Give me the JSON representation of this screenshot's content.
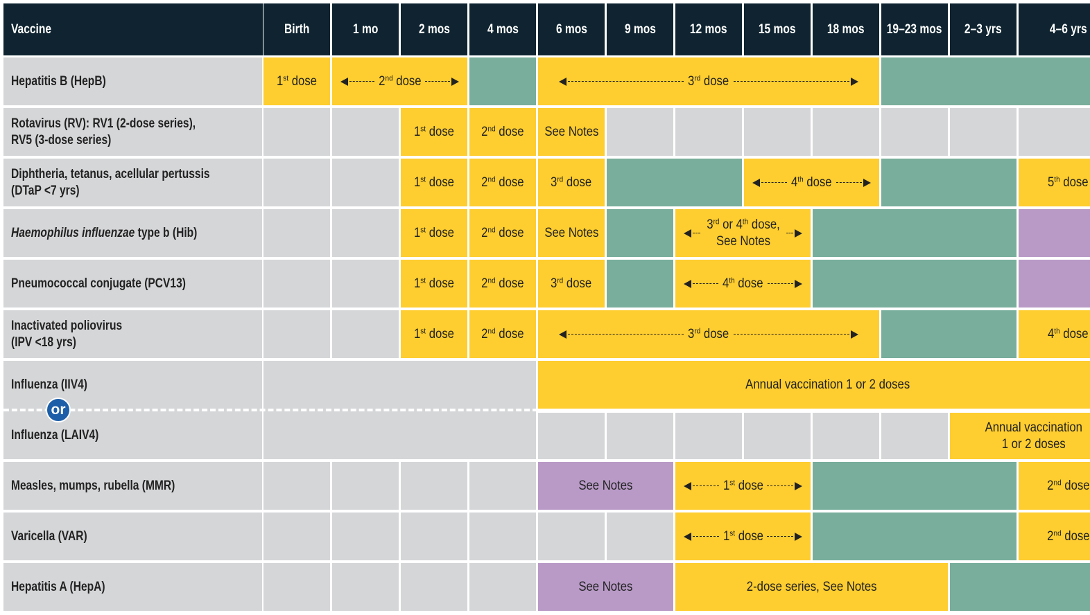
{
  "header": {
    "vaccine": "Vaccine",
    "ages": [
      "Birth",
      "1 mo",
      "2 mos",
      "4 mos",
      "6 mos",
      "9 mos",
      "12 mos",
      "15 mos",
      "18 mos",
      "19–23 mos",
      "2–3 yrs",
      "4–6 yrs"
    ]
  },
  "rows": [
    {
      "label": [
        [
          "Hepatitis B (HepB)"
        ]
      ],
      "cells": [
        {
          "span": 1,
          "color": "#fecd2f",
          "text": [
            [
              "1",
              "st",
              " dose"
            ]
          ]
        },
        {
          "span": 2,
          "color": "#fecd2f",
          "arrows": true,
          "text": [
            [
              "2",
              "nd",
              " dose"
            ]
          ]
        },
        {
          "span": 1,
          "color": "#78ae9b"
        },
        {
          "span": 5,
          "color": "#fecd2f",
          "arrows": true,
          "text": [
            [
              "3",
              "rd",
              " dose"
            ]
          ]
        },
        {
          "span": 3,
          "color": "#78ae9b"
        }
      ]
    },
    {
      "label": [
        [
          "Rotavirus (RV): RV1 (2-dose series),"
        ],
        [
          "RV5 (3-dose series)"
        ]
      ],
      "cells": [
        {
          "span": 1,
          "color": "#d5d6d8"
        },
        {
          "span": 1,
          "color": "#d5d6d8"
        },
        {
          "span": 1,
          "color": "#fecd2f",
          "text": [
            [
              "1",
              "st",
              " dose"
            ]
          ]
        },
        {
          "span": 1,
          "color": "#fecd2f",
          "text": [
            [
              "2",
              "nd",
              " dose"
            ]
          ]
        },
        {
          "span": 1,
          "color": "#fecd2f",
          "text": [
            [
              "See Notes"
            ]
          ]
        },
        {
          "span": 1,
          "color": "#d5d6d8"
        },
        {
          "span": 1,
          "color": "#d5d6d8"
        },
        {
          "span": 1,
          "color": "#d5d6d8"
        },
        {
          "span": 1,
          "color": "#d5d6d8"
        },
        {
          "span": 1,
          "color": "#d5d6d8"
        },
        {
          "span": 1,
          "color": "#d5d6d8"
        },
        {
          "span": 1,
          "color": "#d5d6d8"
        }
      ]
    },
    {
      "label": [
        [
          "Diphtheria, tetanus, acellular pertussis"
        ],
        [
          "(DTaP <7 yrs)"
        ]
      ],
      "cells": [
        {
          "span": 1,
          "color": "#d5d6d8"
        },
        {
          "span": 1,
          "color": "#d5d6d8"
        },
        {
          "span": 1,
          "color": "#fecd2f",
          "text": [
            [
              "1",
              "st",
              " dose"
            ]
          ]
        },
        {
          "span": 1,
          "color": "#fecd2f",
          "text": [
            [
              "2",
              "nd",
              " dose"
            ]
          ]
        },
        {
          "span": 1,
          "color": "#fecd2f",
          "text": [
            [
              "3",
              "rd",
              " dose"
            ]
          ]
        },
        {
          "span": 2,
          "color": "#78ae9b"
        },
        {
          "span": 2,
          "color": "#fecd2f",
          "arrows": true,
          "text": [
            [
              "4",
              "th",
              " dose"
            ]
          ]
        },
        {
          "span": 2,
          "color": "#78ae9b"
        },
        {
          "span": 1,
          "color": "#fecd2f",
          "text": [
            [
              "5",
              "th",
              " dose"
            ]
          ]
        }
      ]
    },
    {
      "label": [
        [
          {
            "italic": "Haemophilus influenzae"
          },
          " type b (Hib)"
        ]
      ],
      "cells": [
        {
          "span": 1,
          "color": "#d5d6d8"
        },
        {
          "span": 1,
          "color": "#d5d6d8"
        },
        {
          "span": 1,
          "color": "#fecd2f",
          "text": [
            [
              "1",
              "st",
              " dose"
            ]
          ]
        },
        {
          "span": 1,
          "color": "#fecd2f",
          "text": [
            [
              "2",
              "nd",
              " dose"
            ]
          ]
        },
        {
          "span": 1,
          "color": "#fecd2f",
          "text": [
            [
              "See Notes"
            ]
          ]
        },
        {
          "span": 1,
          "color": "#78ae9b"
        },
        {
          "span": 2,
          "color": "#fecd2f",
          "arrows": true,
          "text": [
            [
              "3",
              "rd",
              " or 4",
              "th",
              " dose,"
            ],
            [
              "See Notes"
            ]
          ]
        },
        {
          "span": 3,
          "color": "#78ae9b"
        },
        {
          "span": 1,
          "color": "#b99ac7"
        }
      ]
    },
    {
      "label": [
        [
          "Pneumococcal conjugate (PCV13)"
        ]
      ],
      "cells": [
        {
          "span": 1,
          "color": "#d5d6d8"
        },
        {
          "span": 1,
          "color": "#d5d6d8"
        },
        {
          "span": 1,
          "color": "#fecd2f",
          "text": [
            [
              "1",
              "st",
              " dose"
            ]
          ]
        },
        {
          "span": 1,
          "color": "#fecd2f",
          "text": [
            [
              "2",
              "nd",
              " dose"
            ]
          ]
        },
        {
          "span": 1,
          "color": "#fecd2f",
          "text": [
            [
              "3",
              "rd",
              " dose"
            ]
          ]
        },
        {
          "span": 1,
          "color": "#78ae9b"
        },
        {
          "span": 2,
          "color": "#fecd2f",
          "arrows": true,
          "text": [
            [
              "4",
              "th",
              " dose"
            ]
          ]
        },
        {
          "span": 3,
          "color": "#78ae9b"
        },
        {
          "span": 1,
          "color": "#b99ac7"
        }
      ]
    },
    {
      "label": [
        [
          "Inactivated poliovirus"
        ],
        [
          "(IPV <18 yrs)"
        ]
      ],
      "cells": [
        {
          "span": 1,
          "color": "#d5d6d8"
        },
        {
          "span": 1,
          "color": "#d5d6d8"
        },
        {
          "span": 1,
          "color": "#fecd2f",
          "text": [
            [
              "1",
              "st",
              " dose"
            ]
          ]
        },
        {
          "span": 1,
          "color": "#fecd2f",
          "text": [
            [
              "2",
              "nd",
              " dose"
            ]
          ]
        },
        {
          "span": 5,
          "color": "#fecd2f",
          "arrows": true,
          "text": [
            [
              "3",
              "rd",
              " dose"
            ]
          ]
        },
        {
          "span": 2,
          "color": "#78ae9b"
        },
        {
          "span": 1,
          "color": "#fecd2f",
          "text": [
            [
              "4",
              "th",
              " dose"
            ]
          ]
        }
      ]
    },
    {
      "label": [
        [
          "Influenza (IIV4)"
        ]
      ],
      "separator": "or",
      "alt_label": [
        [
          "Influenza (LAIV4)"
        ]
      ],
      "cells": [
        {
          "span": 4,
          "rowspan": 2,
          "color": "#d5d6d8"
        },
        {
          "span": 8,
          "color": "#fecd2f",
          "text": [
            [
              "Annual vaccination 1 or 2 doses"
            ]
          ]
        }
      ],
      "alt_cells": [
        {
          "span": 1,
          "color": "#d5d6d8"
        },
        {
          "span": 1,
          "color": "#d5d6d8"
        },
        {
          "span": 1,
          "color": "#d5d6d8"
        },
        {
          "span": 1,
          "color": "#d5d6d8"
        },
        {
          "span": 1,
          "color": "#d5d6d8"
        },
        {
          "span": 1,
          "color": "#d5d6d8"
        },
        {
          "span": 2,
          "color": "#fecd2f",
          "text": [
            [
              "Annual vaccination"
            ],
            [
              "1 or 2 doses"
            ]
          ]
        }
      ]
    },
    {
      "label": [
        [
          "Measles, mumps, rubella (MMR)"
        ]
      ],
      "cells": [
        {
          "span": 1,
          "color": "#d5d6d8"
        },
        {
          "span": 1,
          "color": "#d5d6d8"
        },
        {
          "span": 1,
          "color": "#d5d6d8"
        },
        {
          "span": 1,
          "color": "#d5d6d8"
        },
        {
          "span": 2,
          "color": "#b99ac7",
          "text": [
            [
              "See Notes"
            ]
          ]
        },
        {
          "span": 2,
          "color": "#fecd2f",
          "arrows": true,
          "text": [
            [
              "1",
              "st",
              " dose"
            ]
          ]
        },
        {
          "span": 3,
          "color": "#78ae9b"
        },
        {
          "span": 1,
          "color": "#fecd2f",
          "text": [
            [
              "2",
              "nd",
              " dose"
            ]
          ]
        }
      ]
    },
    {
      "label": [
        [
          "Varicella (VAR)"
        ]
      ],
      "cells": [
        {
          "span": 1,
          "color": "#d5d6d8"
        },
        {
          "span": 1,
          "color": "#d5d6d8"
        },
        {
          "span": 1,
          "color": "#d5d6d8"
        },
        {
          "span": 1,
          "color": "#d5d6d8"
        },
        {
          "span": 1,
          "color": "#d5d6d8"
        },
        {
          "span": 1,
          "color": "#d5d6d8"
        },
        {
          "span": 2,
          "color": "#fecd2f",
          "arrows": true,
          "text": [
            [
              "1",
              "st",
              " dose"
            ]
          ]
        },
        {
          "span": 3,
          "color": "#78ae9b"
        },
        {
          "span": 1,
          "color": "#fecd2f",
          "text": [
            [
              "2",
              "nd",
              " dose"
            ]
          ]
        }
      ]
    },
    {
      "label": [
        [
          "Hepatitis A (HepA)"
        ]
      ],
      "cells": [
        {
          "span": 1,
          "color": "#d5d6d8"
        },
        {
          "span": 1,
          "color": "#d5d6d8"
        },
        {
          "span": 1,
          "color": "#d5d6d8"
        },
        {
          "span": 1,
          "color": "#d5d6d8"
        },
        {
          "span": 2,
          "color": "#b99ac7",
          "text": [
            [
              "See Notes"
            ]
          ]
        },
        {
          "span": 4,
          "color": "#fecd2f",
          "text": [
            [
              "2-dose series, See Notes"
            ]
          ]
        },
        {
          "span": 2,
          "color": "#78ae9b"
        }
      ]
    }
  ]
}
